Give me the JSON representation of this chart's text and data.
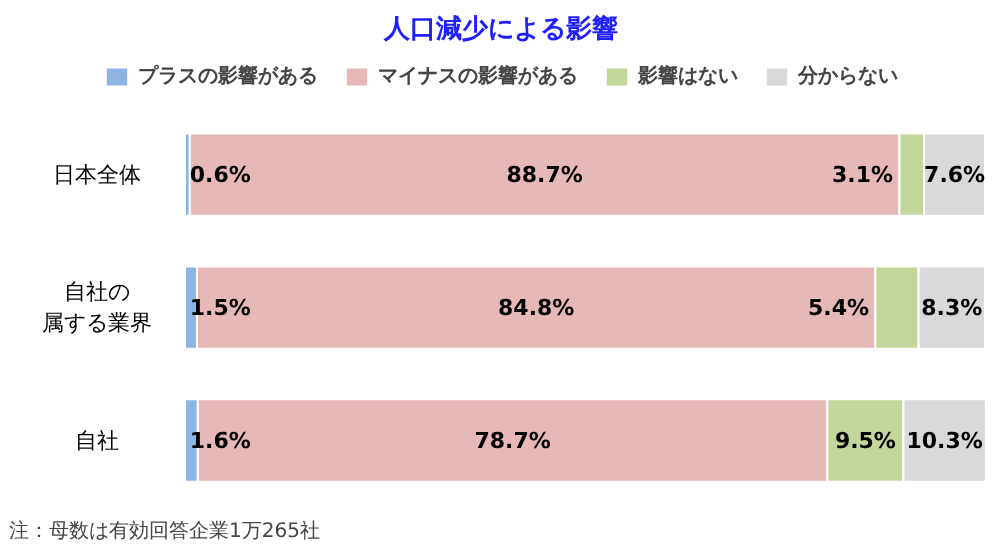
{
  "chart_data": {
    "type": "bar",
    "orientation": "horizontal",
    "stacked": true,
    "title": "人口減少による影響",
    "categories": [
      "日本全体",
      "自社の属する業界",
      "自社"
    ],
    "series": [
      {
        "name": "プラスの影響がある",
        "color": "#8eb4e3",
        "values": [
          0.6,
          1.5,
          1.6
        ],
        "value_labels": [
          "0.6%",
          "1.5%",
          "1.6%"
        ]
      },
      {
        "name": "マイナスの影響がある",
        "color": "#e6b9b8",
        "values": [
          88.7,
          84.8,
          78.7
        ],
        "value_labels": [
          "88.7%",
          "84.8%",
          "78.7%"
        ]
      },
      {
        "name": "影響はない",
        "color": "#c3d69b",
        "values": [
          3.1,
          5.4,
          9.5
        ],
        "value_labels": [
          "3.1%",
          "5.4%",
          "9.5%"
        ]
      },
      {
        "name": "分からない",
        "color": "#d9d9d9",
        "values": [
          7.6,
          8.3,
          10.3
        ],
        "value_labels": [
          "7.6%",
          "8.3%",
          "10.3%"
        ]
      }
    ],
    "legend": "top",
    "annotations": [
      "注：母数は有効回答企業1万265社"
    ]
  }
}
